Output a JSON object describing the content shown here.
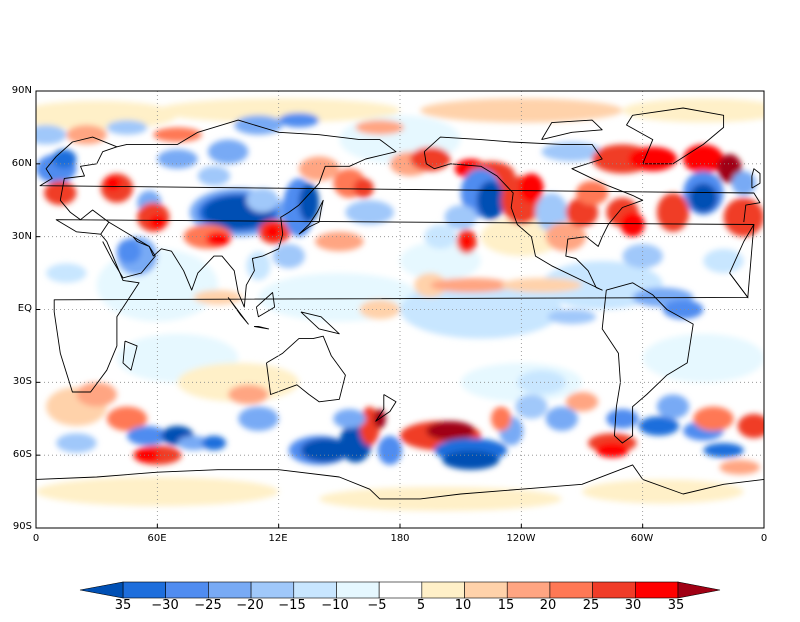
{
  "map": {
    "lat_labels": [
      "90N",
      "60N",
      "30N",
      "EQ",
      "30S",
      "60S",
      "90S"
    ],
    "lon_labels": [
      "0",
      "60E",
      "12E",
      "180",
      "120W",
      "60W",
      "0"
    ],
    "colors": {
      "neg_35": "#0050b4",
      "neg_30": "#1e6edc",
      "neg_25": "#508cf0",
      "neg_20": "#78aaf5",
      "neg_15": "#a0c8fa",
      "neg_10": "#c8e6ff",
      "neg_5": "#e6f8ff",
      "zero": "#ffffff",
      "pos_5": "#fff0c8",
      "pos_10": "#ffd2aa",
      "pos_15": "#ffa582",
      "pos_20": "#ff7855",
      "pos_25": "#f03c28",
      "pos_30": "#ff0000",
      "pos_35": "#a00014"
    }
  },
  "colorbar": {
    "labels": [
      "35",
      "−30",
      "−25",
      "−20",
      "−15",
      "−10",
      "−5",
      "5",
      "10",
      "15",
      "20",
      "25",
      "30",
      "35"
    ]
  }
}
